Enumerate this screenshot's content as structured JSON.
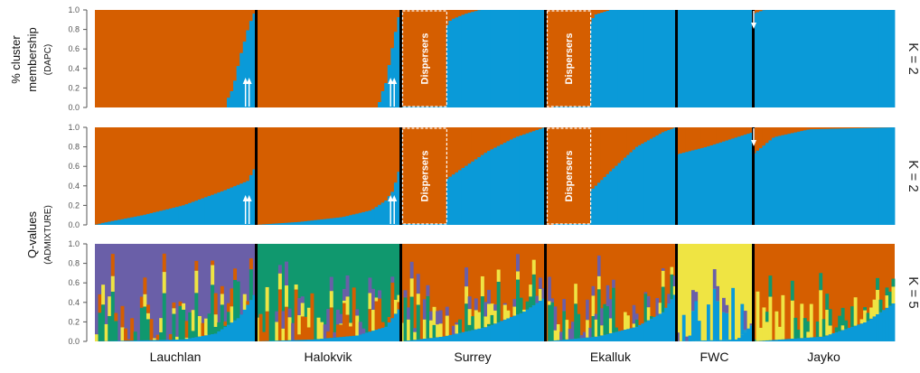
{
  "colors": {
    "orange": "#d55e00",
    "blue": "#0a9ad8",
    "purple": "#6a5fa8",
    "green": "#10986e",
    "yellow": "#efe443",
    "divider": "#000000",
    "tick": "#555555"
  },
  "chart_data": [
    {
      "type": "bar",
      "subtype": "stacked-100",
      "panel": "DAPC",
      "k_label": "K = 2",
      "ylabel_line1": "% cluster",
      "ylabel_line2": "membership",
      "ylabel_sub": "(DAPC)",
      "yticks": [
        "0.0",
        "0.2",
        "0.4",
        "0.6",
        "0.8",
        "1.0"
      ],
      "ylim": [
        0,
        1
      ],
      "populations": [
        {
          "name": "Lauchlan",
          "n": 50,
          "base": "orange",
          "blue_profile": [
            [
              0,
              0
            ],
            [
              0.82,
              0
            ],
            [
              0.83,
              0.1
            ],
            [
              0.86,
              0.2
            ],
            [
              0.9,
              0.5
            ],
            [
              0.96,
              0.85
            ],
            [
              1,
              1
            ]
          ]
        },
        {
          "name": "Halokvik",
          "n": 45,
          "base": "orange",
          "blue_profile": [
            [
              0,
              0
            ],
            [
              0.85,
              0
            ],
            [
              0.86,
              0.1
            ],
            [
              0.9,
              0.25
            ],
            [
              0.93,
              0.5
            ],
            [
              0.97,
              0.8
            ],
            [
              1,
              1
            ]
          ]
        },
        {
          "name": "Surrey",
          "n": 45,
          "base": "blue",
          "blue_profile": [
            [
              0,
              0.05
            ],
            [
              0.1,
              0.1
            ],
            [
              0.18,
              0.25
            ],
            [
              0.25,
              0.45
            ],
            [
              0.3,
              0.8
            ],
            [
              0.35,
              0.9
            ],
            [
              0.45,
              0.96
            ],
            [
              0.55,
              1
            ],
            [
              1,
              1
            ]
          ]
        },
        {
          "name": "Ekalluk",
          "n": 45,
          "base": "blue",
          "blue_profile": [
            [
              0,
              0
            ],
            [
              0.06,
              0
            ],
            [
              0.1,
              0.05
            ],
            [
              0.2,
              0.15
            ],
            [
              0.28,
              0.45
            ],
            [
              0.32,
              0.8
            ],
            [
              0.38,
              0.95
            ],
            [
              0.5,
              1
            ],
            [
              1,
              1
            ]
          ]
        },
        {
          "name": "FWC",
          "n": 25,
          "base": "blue",
          "blue_profile": [
            [
              0,
              1
            ],
            [
              1,
              1
            ]
          ]
        },
        {
          "name": "Jayko",
          "n": 45,
          "base": "blue",
          "blue_profile": [
            [
              0,
              0.96
            ],
            [
              0.08,
              1
            ],
            [
              1,
              1
            ]
          ]
        }
      ]
    },
    {
      "type": "bar",
      "subtype": "stacked-100",
      "panel": "ADMIXTURE K2",
      "k_label": "K = 2",
      "ylabel_line1": "Q-values",
      "ylabel_sub": "(ADMIXTURE)",
      "yticks": [
        "0.0",
        "0.2",
        "0.4",
        "0.6",
        "0.8",
        "1.0"
      ],
      "ylim": [
        0,
        1
      ],
      "populations": [
        {
          "name": "Lauchlan",
          "n": 50,
          "base": "orange",
          "blue_profile": [
            [
              0,
              0
            ],
            [
              0.05,
              0.02
            ],
            [
              0.3,
              0.1
            ],
            [
              0.55,
              0.2
            ],
            [
              0.8,
              0.35
            ],
            [
              0.95,
              0.45
            ],
            [
              1,
              0.6
            ]
          ]
        },
        {
          "name": "Halokvik",
          "n": 45,
          "base": "orange",
          "blue_profile": [
            [
              0,
              0
            ],
            [
              0.3,
              0.03
            ],
            [
              0.6,
              0.08
            ],
            [
              0.8,
              0.15
            ],
            [
              0.9,
              0.25
            ],
            [
              0.95,
              0.35
            ],
            [
              1,
              0.6
            ]
          ]
        },
        {
          "name": "Surrey",
          "n": 45,
          "base": "blue",
          "blue_profile": [
            [
              0,
              0.05
            ],
            [
              0.1,
              0.15
            ],
            [
              0.2,
              0.3
            ],
            [
              0.3,
              0.45
            ],
            [
              0.4,
              0.55
            ],
            [
              0.6,
              0.75
            ],
            [
              0.8,
              0.9
            ],
            [
              1,
              1
            ]
          ]
        },
        {
          "name": "Ekalluk",
          "n": 45,
          "base": "blue",
          "blue_profile": [
            [
              0,
              0
            ],
            [
              0.06,
              0
            ],
            [
              0.12,
              0.05
            ],
            [
              0.2,
              0.15
            ],
            [
              0.35,
              0.35
            ],
            [
              0.5,
              0.55
            ],
            [
              0.7,
              0.8
            ],
            [
              0.9,
              0.95
            ],
            [
              1,
              1
            ]
          ]
        },
        {
          "name": "FWC",
          "n": 25,
          "base": "blue",
          "blue_profile": [
            [
              0,
              0.72
            ],
            [
              0.4,
              0.8
            ],
            [
              0.8,
              0.9
            ],
            [
              1,
              0.95
            ]
          ]
        },
        {
          "name": "Jayko",
          "n": 45,
          "base": "blue",
          "blue_profile": [
            [
              0,
              0.72
            ],
            [
              0.15,
              0.9
            ],
            [
              0.4,
              0.98
            ],
            [
              1,
              1
            ]
          ]
        }
      ]
    },
    {
      "type": "bar",
      "subtype": "stacked-100",
      "panel": "ADMIXTURE K5",
      "k_label": "K = 5",
      "yticks": [
        "0.0",
        "0.2",
        "0.4",
        "0.6",
        "0.8",
        "1.0"
      ],
      "ylim": [
        0,
        1
      ],
      "populations": [
        {
          "name": "Lauchlan",
          "n": 50,
          "base": "purple",
          "mix": [
            "green",
            "yellow",
            "orange"
          ],
          "blue_profile": [
            [
              0,
              0
            ],
            [
              0.55,
              0.02
            ],
            [
              0.75,
              0.08
            ],
            [
              0.9,
              0.25
            ],
            [
              1,
              0.5
            ]
          ]
        },
        {
          "name": "Halokvik",
          "n": 45,
          "base": "green",
          "mix": [
            "orange",
            "yellow",
            "purple"
          ],
          "blue_profile": [
            [
              0,
              0
            ],
            [
              0.4,
              0.02
            ],
            [
              0.7,
              0.06
            ],
            [
              0.9,
              0.15
            ],
            [
              1,
              0.35
            ]
          ]
        },
        {
          "name": "Surrey",
          "n": 45,
          "base": "orange",
          "mix": [
            "green",
            "yellow",
            "purple"
          ],
          "blue_profile": [
            [
              0,
              0
            ],
            [
              0.3,
              0.05
            ],
            [
              0.6,
              0.15
            ],
            [
              0.85,
              0.3
            ],
            [
              1,
              0.45
            ]
          ]
        },
        {
          "name": "Ekalluk",
          "n": 45,
          "base": "orange",
          "mix": [
            "green",
            "yellow",
            "purple"
          ],
          "blue_profile": [
            [
              0,
              0
            ],
            [
              0.4,
              0.05
            ],
            [
              0.7,
              0.15
            ],
            [
              0.9,
              0.3
            ],
            [
              1,
              0.5
            ]
          ]
        },
        {
          "name": "FWC",
          "n": 25,
          "base": "yellow",
          "mix": [
            "blue",
            "purple"
          ],
          "blue_profile": [
            [
              0,
              0
            ],
            [
              0.8,
              0.02
            ],
            [
              1,
              0.18
            ]
          ]
        },
        {
          "name": "Jayko",
          "n": 45,
          "base": "orange",
          "mix": [
            "yellow",
            "green"
          ],
          "blue_profile": [
            [
              0,
              0
            ],
            [
              0.5,
              0.05
            ],
            [
              0.8,
              0.2
            ],
            [
              1,
              0.4
            ]
          ]
        }
      ]
    }
  ],
  "annotations": {
    "dispersers_label": "Dispersers",
    "dispersers": [
      {
        "panel": 0,
        "population": "Surrey",
        "from": 0,
        "to": 0.28
      },
      {
        "panel": 0,
        "population": "Ekalluk",
        "from": 0,
        "to": 0.3
      },
      {
        "panel": 1,
        "population": "Surrey",
        "from": 0,
        "to": 0.28
      },
      {
        "panel": 1,
        "population": "Ekalluk",
        "from": 0,
        "to": 0.3
      }
    ],
    "arrows": [
      {
        "panel": 0,
        "population": "Lauchlan",
        "at": 0.97,
        "dir": "up"
      },
      {
        "panel": 0,
        "population": "Halokvik",
        "at": 0.97,
        "dir": "up"
      },
      {
        "panel": 0,
        "population": "Jayko",
        "at": 0.0,
        "dir": "down"
      },
      {
        "panel": 1,
        "population": "Lauchlan",
        "at": 0.97,
        "dir": "up"
      },
      {
        "panel": 1,
        "population": "Halokvik",
        "at": 0.97,
        "dir": "up"
      },
      {
        "panel": 1,
        "population": "Jayko",
        "at": 0.0,
        "dir": "down"
      }
    ]
  },
  "x_labels": [
    "Lauchlan",
    "Halokvik",
    "Surrey",
    "Ekalluk",
    "FWC",
    "Jayko"
  ]
}
